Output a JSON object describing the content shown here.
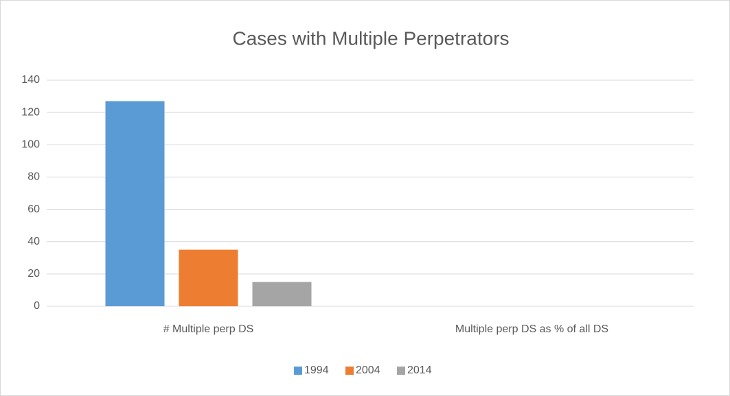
{
  "chart_data": {
    "type": "bar",
    "title": "Cases with Multiple Perpetrators",
    "categories": [
      "# Multiple perp DS",
      "Multiple perp DS as % of all DS"
    ],
    "series": [
      {
        "name": "1994",
        "color": "#5b9bd5",
        "values": [
          127,
          0
        ]
      },
      {
        "name": "2004",
        "color": "#ed7d31",
        "values": [
          35,
          0
        ]
      },
      {
        "name": "2014",
        "color": "#a5a5a5",
        "values": [
          15,
          0
        ]
      }
    ],
    "ylim": [
      0,
      140
    ],
    "yticks": [
      0,
      20,
      40,
      60,
      80,
      100,
      120,
      140
    ],
    "grid": true,
    "legend": "bottom"
  }
}
